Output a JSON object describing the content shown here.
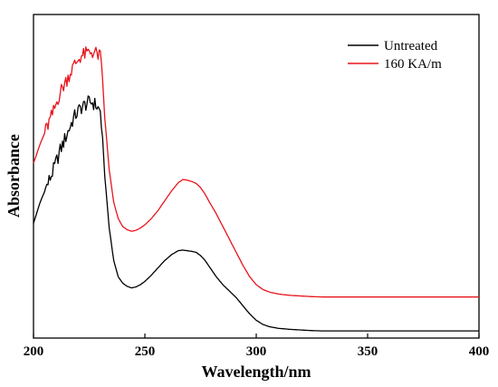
{
  "chart_data": {
    "type": "line",
    "xlabel": "Wavelength/nm",
    "ylabel": "Absorbance",
    "xlim": [
      200,
      400
    ],
    "ylim": [
      0,
      1.0
    ],
    "x_ticks": [
      "200",
      "250",
      "300",
      "350",
      "400"
    ],
    "y_ticks": [],
    "grid": false,
    "legend_position": "top-right",
    "series": [
      {
        "name": "Untreated",
        "color": "#000000",
        "x": [
          200,
          203,
          206,
          209,
          212,
          215,
          218,
          221,
          224,
          226,
          228,
          230,
          231,
          232,
          234,
          236,
          238,
          240,
          242,
          244,
          246,
          248,
          250,
          253,
          256,
          259,
          262,
          265,
          267,
          269,
          271,
          273,
          275,
          277,
          279,
          282,
          285,
          288,
          291,
          294,
          297,
          300,
          303,
          306,
          310,
          315,
          320,
          325,
          330,
          340,
          350,
          360,
          370,
          380,
          390,
          400
        ],
        "y": [
          0.355,
          0.42,
          0.47,
          0.52,
          0.58,
          0.63,
          0.68,
          0.71,
          0.725,
          0.73,
          0.72,
          0.7,
          0.62,
          0.5,
          0.34,
          0.24,
          0.19,
          0.17,
          0.16,
          0.155,
          0.158,
          0.165,
          0.175,
          0.195,
          0.218,
          0.24,
          0.258,
          0.27,
          0.272,
          0.27,
          0.268,
          0.265,
          0.255,
          0.24,
          0.22,
          0.19,
          0.165,
          0.145,
          0.125,
          0.1,
          0.075,
          0.055,
          0.042,
          0.035,
          0.03,
          0.027,
          0.025,
          0.023,
          0.022,
          0.022,
          0.022,
          0.022,
          0.022,
          0.022,
          0.022,
          0.022
        ]
      },
      {
        "name": "160 KA/m",
        "color": "#e8141b",
        "x": [
          200,
          203,
          206,
          209,
          212,
          215,
          218,
          221,
          224,
          226,
          228,
          230,
          231,
          232,
          234,
          236,
          238,
          240,
          242,
          244,
          246,
          248,
          250,
          253,
          256,
          259,
          262,
          265,
          267,
          269,
          271,
          273,
          275,
          277,
          279,
          282,
          285,
          288,
          291,
          294,
          297,
          300,
          303,
          306,
          310,
          315,
          320,
          325,
          330,
          340,
          350,
          360,
          370,
          380,
          390,
          400
        ],
        "y": [
          0.54,
          0.6,
          0.65,
          0.7,
          0.76,
          0.8,
          0.84,
          0.87,
          0.88,
          0.885,
          0.88,
          0.87,
          0.8,
          0.68,
          0.52,
          0.42,
          0.37,
          0.345,
          0.335,
          0.33,
          0.333,
          0.34,
          0.35,
          0.37,
          0.395,
          0.425,
          0.455,
          0.48,
          0.49,
          0.488,
          0.484,
          0.478,
          0.465,
          0.445,
          0.42,
          0.385,
          0.345,
          0.305,
          0.265,
          0.225,
          0.19,
          0.165,
          0.15,
          0.142,
          0.136,
          0.132,
          0.13,
          0.128,
          0.127,
          0.127,
          0.127,
          0.127,
          0.127,
          0.127,
          0.127,
          0.127
        ]
      }
    ]
  }
}
